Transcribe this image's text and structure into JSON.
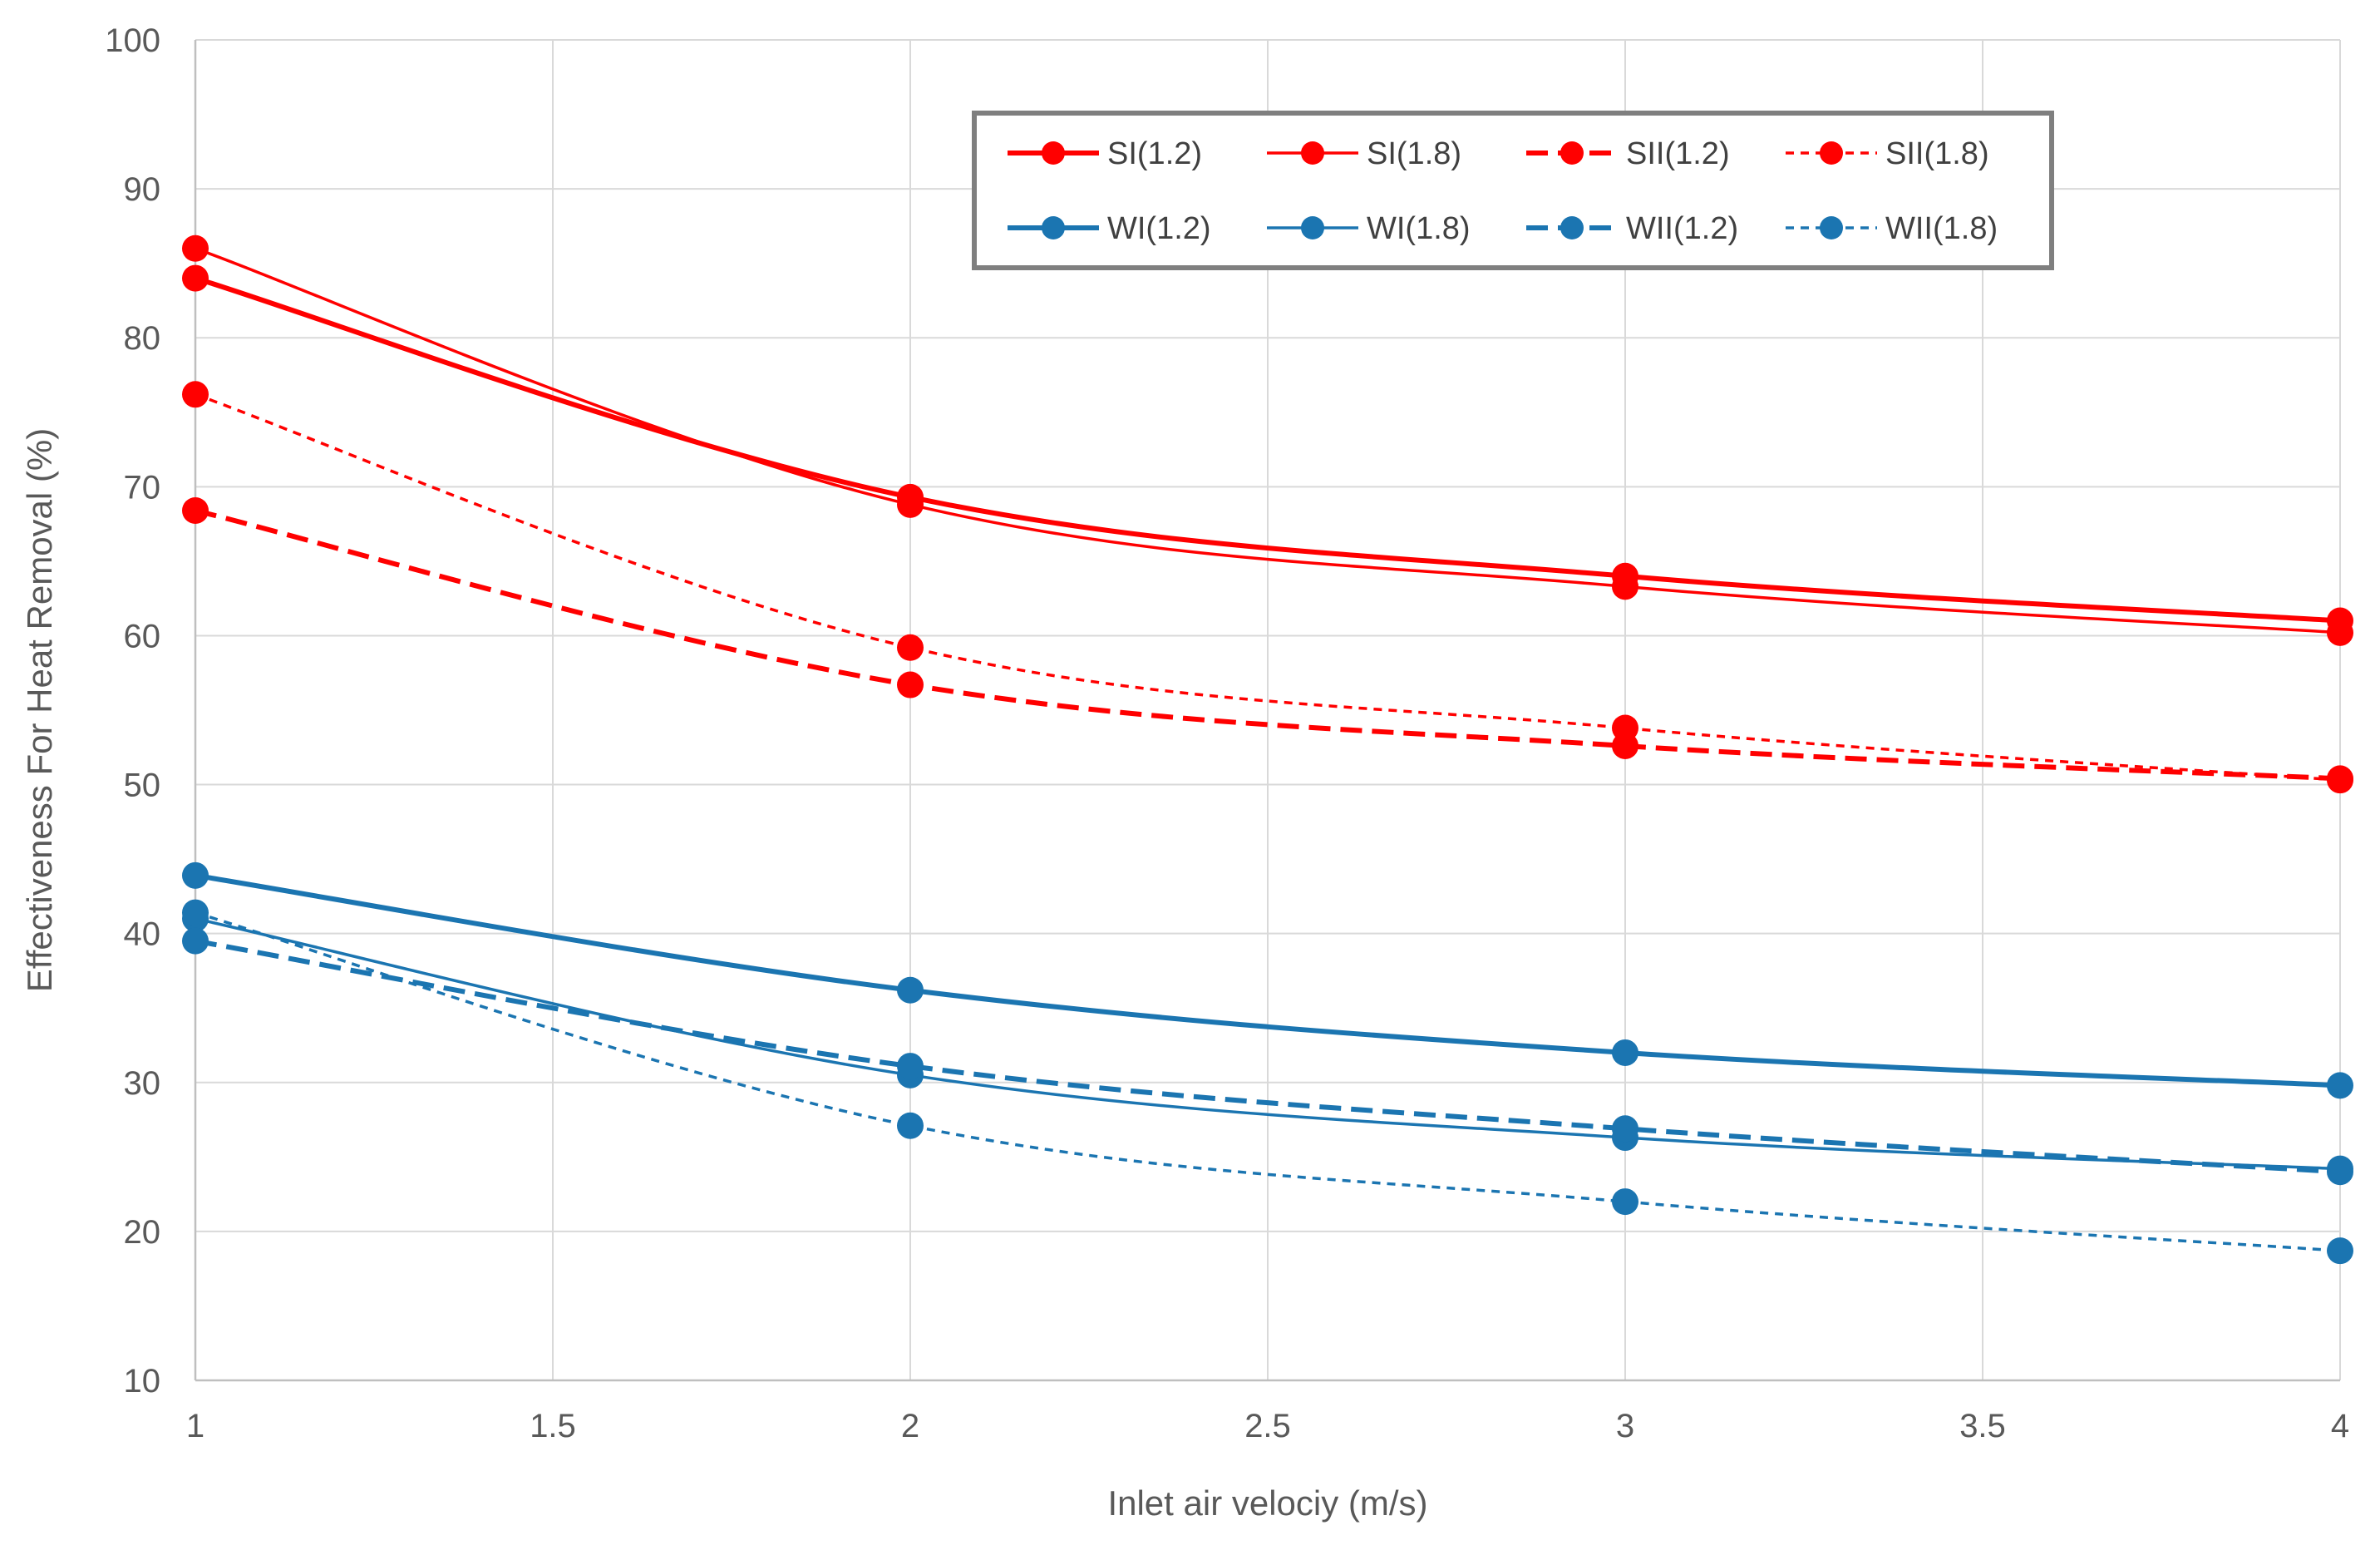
{
  "chart_data": {
    "type": "line",
    "title": "",
    "xlabel": "Inlet air velociy (m/s)",
    "ylabel": "Effectiveness For Heat Removal (%)",
    "xlim": [
      1,
      4
    ],
    "ylim": [
      10,
      100
    ],
    "x_ticks": [
      "1",
      "1.5",
      "2",
      "2.5",
      "3",
      "3.5",
      "4"
    ],
    "y_ticks": [
      "10",
      "20",
      "30",
      "40",
      "50",
      "60",
      "70",
      "80",
      "90",
      "100"
    ],
    "grid": true,
    "legend_position": "top-right",
    "x": [
      1,
      2,
      3,
      4
    ],
    "series": [
      {
        "name": "SI(1.2)",
        "color": "#ff0000",
        "dash": "solid",
        "weight": "thick",
        "values": [
          84.0,
          69.3,
          64.0,
          61.0
        ]
      },
      {
        "name": "SI(1.8)",
        "color": "#ff0000",
        "dash": "solid",
        "weight": "thin",
        "values": [
          86.0,
          68.8,
          63.3,
          60.2
        ]
      },
      {
        "name": "SII(1.2)",
        "color": "#ff0000",
        "dash": "long-dash",
        "weight": "thick",
        "values": [
          68.4,
          56.7,
          52.6,
          50.4
        ]
      },
      {
        "name": "SII(1.8)",
        "color": "#ff0000",
        "dash": "short-dash",
        "weight": "thin",
        "values": [
          76.2,
          59.2,
          53.8,
          50.3
        ]
      },
      {
        "name": "WI(1.2)",
        "color": "#1b75b1",
        "dash": "solid",
        "weight": "thick",
        "values": [
          43.9,
          36.2,
          32.0,
          29.8
        ]
      },
      {
        "name": "WI(1.8)",
        "color": "#1b75b1",
        "dash": "solid",
        "weight": "thin",
        "values": [
          41.0,
          30.5,
          26.3,
          24.2
        ]
      },
      {
        "name": "WII(1.2)",
        "color": "#1b75b1",
        "dash": "long-dash",
        "weight": "thick",
        "values": [
          39.5,
          31.1,
          26.9,
          24.0
        ]
      },
      {
        "name": "WII(1.8)",
        "color": "#1b75b1",
        "dash": "short-dash",
        "weight": "thin",
        "values": [
          41.4,
          27.1,
          22.0,
          18.7
        ]
      }
    ]
  }
}
